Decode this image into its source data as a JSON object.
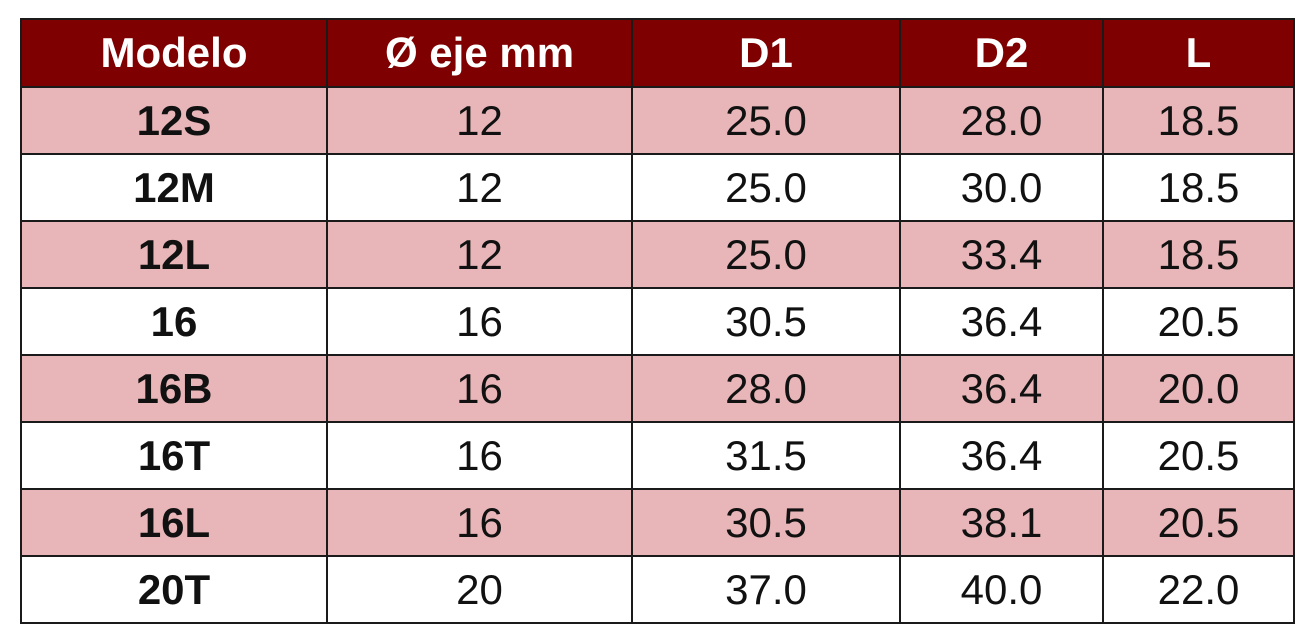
{
  "table": {
    "headers": [
      "Modelo",
      "Ø eje mm",
      "D1",
      "D2",
      "L"
    ],
    "rows": [
      [
        "12S",
        "12",
        "25.0",
        "28.0",
        "18.5"
      ],
      [
        "12M",
        "12",
        "25.0",
        "30.0",
        "18.5"
      ],
      [
        "12L",
        "12",
        "25.0",
        "33.4",
        "18.5"
      ],
      [
        "16",
        "16",
        "30.5",
        "36.4",
        "20.5"
      ],
      [
        "16B",
        "16",
        "28.0",
        "36.4",
        "20.0"
      ],
      [
        "16T",
        "16",
        "31.5",
        "36.4",
        "20.5"
      ],
      [
        "16L",
        "16",
        "30.5",
        "38.1",
        "20.5"
      ],
      [
        "20T",
        "20",
        "37.0",
        "40.0",
        "22.0"
      ]
    ]
  }
}
